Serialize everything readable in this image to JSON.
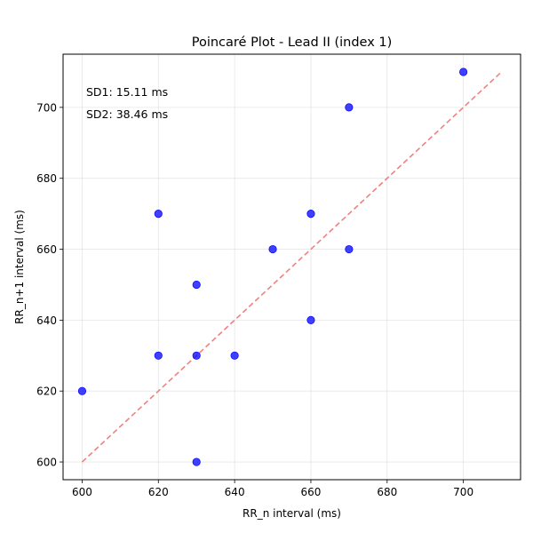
{
  "chart_data": {
    "type": "scatter",
    "title": "Poincaré Plot - Lead II (index 1)",
    "xlabel": "RR_n interval (ms)",
    "ylabel": "RR_n+1 interval (ms)",
    "xlim": [
      595,
      715
    ],
    "ylim": [
      595,
      715
    ],
    "xticks": [
      600,
      620,
      640,
      660,
      680,
      700
    ],
    "yticks": [
      600,
      620,
      640,
      660,
      680,
      700
    ],
    "grid": true,
    "points": [
      {
        "x": 600,
        "y": 620
      },
      {
        "x": 620,
        "y": 630
      },
      {
        "x": 620,
        "y": 670
      },
      {
        "x": 630,
        "y": 600
      },
      {
        "x": 630,
        "y": 630
      },
      {
        "x": 630,
        "y": 650
      },
      {
        "x": 640,
        "y": 630
      },
      {
        "x": 650,
        "y": 660
      },
      {
        "x": 660,
        "y": 670
      },
      {
        "x": 660,
        "y": 640
      },
      {
        "x": 670,
        "y": 700
      },
      {
        "x": 670,
        "y": 660
      },
      {
        "x": 700,
        "y": 710
      }
    ],
    "identity_line": {
      "from": 600,
      "to": 710
    },
    "annotations": [
      "SD1: 15.11 ms",
      "SD2: 38.46 ms"
    ],
    "point_color": "#0000ff",
    "line_color": "#f08080"
  }
}
